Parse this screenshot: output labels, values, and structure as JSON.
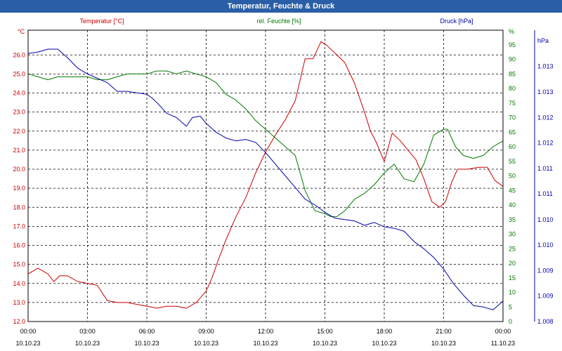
{
  "window": {
    "title": "Temperatur, Feuchte & Druck"
  },
  "colors": {
    "temperature": "#cc0000",
    "humidity": "#007700",
    "pressure": "#0000aa",
    "grid": "#000000",
    "titlebar": "#2a5ea7"
  },
  "chart_data": {
    "type": "line",
    "title": "Temperatur, Feuchte & Druck",
    "grid": true,
    "x_axis": {
      "unit": "hours",
      "range": [
        0,
        24
      ],
      "ticks": [
        {
          "t": 0,
          "time": "00:00",
          "date": "10.10.23"
        },
        {
          "t": 3,
          "time": "03:00",
          "date": "10.10.23"
        },
        {
          "t": 6,
          "time": "06:00",
          "date": "10.10.23"
        },
        {
          "t": 9,
          "time": "09:00",
          "date": "10.10.23"
        },
        {
          "t": 12,
          "time": "12:00",
          "date": "10.10.23"
        },
        {
          "t": 15,
          "time": "15:00",
          "date": "10.10.23"
        },
        {
          "t": 18,
          "time": "18:00",
          "date": "10.10.23"
        },
        {
          "t": 21,
          "time": "21:00",
          "date": "10.10.23"
        },
        {
          "t": 24,
          "time": "00:00",
          "date": "11.10.23"
        }
      ]
    },
    "axes": {
      "temperature": {
        "label": "Temperatur [°C]",
        "unit": "°C",
        "range": [
          12.0,
          27.3
        ],
        "ticks": [
          "12.0",
          "13.0",
          "14.0",
          "15.0",
          "16.0",
          "17.0",
          "18.0",
          "19.0",
          "20.0",
          "21.0",
          "22.0",
          "23.0",
          "24.0",
          "25.0",
          "26.0"
        ]
      },
      "humidity": {
        "label": "rel. Feuchte [%]",
        "unit": "%",
        "range": [
          0,
          100
        ],
        "ticks": [
          "0",
          "5",
          "10",
          "15",
          "20",
          "25",
          "30",
          "35",
          "40",
          "45",
          "50",
          "55",
          "60",
          "65",
          "70",
          "75",
          "80",
          "85",
          "90",
          "95"
        ]
      },
      "pressure": {
        "label": "Druck [hPa]",
        "unit": "hPa",
        "ticks": [
          {
            "v": 0.0,
            "text": "1.008"
          },
          {
            "v": 0.0876,
            "text": "1.009"
          },
          {
            "v": 0.1752,
            "text": "1.009"
          },
          {
            "v": 0.263,
            "text": "1.010"
          },
          {
            "v": 0.35,
            "text": "1.010"
          },
          {
            "v": 0.438,
            "text": "1.011"
          },
          {
            "v": 0.525,
            "text": "1.011"
          },
          {
            "v": 0.613,
            "text": "1.012"
          },
          {
            "v": 0.7,
            "text": "1.012"
          },
          {
            "v": 0.788,
            "text": "1.013"
          },
          {
            "v": 0.876,
            "text": "1.013"
          },
          {
            "v": 0.964,
            "text": "hPa"
          }
        ]
      }
    },
    "series": [
      {
        "name": "Temperatur [°C]",
        "axis": "temperature",
        "points": [
          [
            0,
            14.5
          ],
          [
            0.5,
            14.8
          ],
          [
            1,
            14.5
          ],
          [
            1.3,
            14.1
          ],
          [
            1.6,
            14.4
          ],
          [
            2,
            14.4
          ],
          [
            2.5,
            14.1
          ],
          [
            3,
            14.0
          ],
          [
            3.5,
            13.9
          ],
          [
            4,
            13.1
          ],
          [
            4.5,
            13.0
          ],
          [
            5,
            13.0
          ],
          [
            5.5,
            12.9
          ],
          [
            6,
            12.8
          ],
          [
            6.5,
            12.7
          ],
          [
            7,
            12.8
          ],
          [
            7.5,
            12.8
          ],
          [
            8,
            12.7
          ],
          [
            8.5,
            13.0
          ],
          [
            9,
            13.6
          ],
          [
            9.3,
            14.3
          ],
          [
            9.6,
            15.2
          ],
          [
            10,
            16.3
          ],
          [
            10.5,
            17.5
          ],
          [
            11,
            18.5
          ],
          [
            11.5,
            19.8
          ],
          [
            12,
            20.9
          ],
          [
            12.5,
            21.8
          ],
          [
            13,
            22.6
          ],
          [
            13.5,
            23.6
          ],
          [
            14,
            25.8
          ],
          [
            14.4,
            25.8
          ],
          [
            14.8,
            26.7
          ],
          [
            15.1,
            26.5
          ],
          [
            15.5,
            26.1
          ],
          [
            16,
            25.6
          ],
          [
            16.5,
            24.5
          ],
          [
            17,
            23.0
          ],
          [
            17.3,
            22.0
          ],
          [
            17.6,
            21.4
          ],
          [
            18,
            20.4
          ],
          [
            18.4,
            21.9
          ],
          [
            18.8,
            21.5
          ],
          [
            19.2,
            21.0
          ],
          [
            19.6,
            20.5
          ],
          [
            20,
            19.5
          ],
          [
            20.4,
            18.3
          ],
          [
            20.8,
            18.0
          ],
          [
            21.1,
            18.3
          ],
          [
            21.4,
            19.3
          ],
          [
            21.7,
            20.0
          ],
          [
            22.2,
            20.0
          ],
          [
            22.8,
            20.1
          ],
          [
            23.2,
            20.1
          ],
          [
            23.6,
            19.4
          ],
          [
            24,
            19.1
          ]
        ]
      },
      {
        "name": "rel. Feuchte [%]",
        "axis": "humidity",
        "points": [
          [
            0,
            85
          ],
          [
            0.5,
            84
          ],
          [
            1,
            83
          ],
          [
            1.5,
            84
          ],
          [
            2,
            84
          ],
          [
            2.5,
            84
          ],
          [
            3,
            84
          ],
          [
            3.5,
            83
          ],
          [
            4,
            83
          ],
          [
            4.5,
            84
          ],
          [
            5,
            85
          ],
          [
            5.5,
            85
          ],
          [
            6,
            85
          ],
          [
            6.5,
            86
          ],
          [
            7,
            86
          ],
          [
            7.5,
            85
          ],
          [
            8,
            86
          ],
          [
            8.5,
            85
          ],
          [
            9,
            84
          ],
          [
            9.5,
            82
          ],
          [
            10,
            78
          ],
          [
            10.5,
            76
          ],
          [
            11,
            73
          ],
          [
            11.5,
            69
          ],
          [
            12,
            66
          ],
          [
            12.5,
            63
          ],
          [
            13,
            60
          ],
          [
            13.5,
            57
          ],
          [
            14,
            45
          ],
          [
            14.5,
            38
          ],
          [
            15,
            37
          ],
          [
            15.3,
            36
          ],
          [
            15.6,
            36
          ],
          [
            16,
            38
          ],
          [
            16.5,
            42
          ],
          [
            17,
            44
          ],
          [
            17.5,
            47
          ],
          [
            18,
            51
          ],
          [
            18.5,
            54
          ],
          [
            19,
            49
          ],
          [
            19.5,
            48
          ],
          [
            20,
            54
          ],
          [
            20.5,
            64
          ],
          [
            21,
            66
          ],
          [
            21.2,
            66
          ],
          [
            21.6,
            60
          ],
          [
            22,
            57
          ],
          [
            22.5,
            56
          ],
          [
            23,
            57
          ],
          [
            23.5,
            60
          ],
          [
            24,
            62
          ]
        ]
      },
      {
        "name": "Druck [hPa]",
        "axis": "pressure",
        "points": [
          [
            0,
            0.92
          ],
          [
            0.5,
            0.925
          ],
          [
            1,
            0.935
          ],
          [
            1.5,
            0.935
          ],
          [
            2,
            0.905
          ],
          [
            2.5,
            0.87
          ],
          [
            3,
            0.85
          ],
          [
            3.5,
            0.835
          ],
          [
            4,
            0.82
          ],
          [
            4.5,
            0.79
          ],
          [
            5,
            0.79
          ],
          [
            5.5,
            0.785
          ],
          [
            6,
            0.78
          ],
          [
            6.3,
            0.765
          ],
          [
            6.6,
            0.745
          ],
          [
            7,
            0.715
          ],
          [
            7.5,
            0.7
          ],
          [
            8,
            0.67
          ],
          [
            8.3,
            0.7
          ],
          [
            8.7,
            0.705
          ],
          [
            9,
            0.68
          ],
          [
            9.5,
            0.65
          ],
          [
            10,
            0.63
          ],
          [
            10.5,
            0.62
          ],
          [
            11,
            0.625
          ],
          [
            11.5,
            0.615
          ],
          [
            12,
            0.58
          ],
          [
            12.5,
            0.54
          ],
          [
            13,
            0.5
          ],
          [
            13.5,
            0.46
          ],
          [
            14,
            0.42
          ],
          [
            14.5,
            0.4
          ],
          [
            15,
            0.375
          ],
          [
            15.5,
            0.355
          ],
          [
            16,
            0.35
          ],
          [
            16.5,
            0.345
          ],
          [
            17,
            0.33
          ],
          [
            17.5,
            0.34
          ],
          [
            18,
            0.325
          ],
          [
            18.5,
            0.32
          ],
          [
            19,
            0.31
          ],
          [
            19.5,
            0.275
          ],
          [
            20,
            0.25
          ],
          [
            20.5,
            0.22
          ],
          [
            21,
            0.18
          ],
          [
            21.5,
            0.13
          ],
          [
            22,
            0.09
          ],
          [
            22.5,
            0.055
          ],
          [
            23,
            0.05
          ],
          [
            23.5,
            0.04
          ],
          [
            24,
            0.07
          ]
        ]
      }
    ]
  }
}
